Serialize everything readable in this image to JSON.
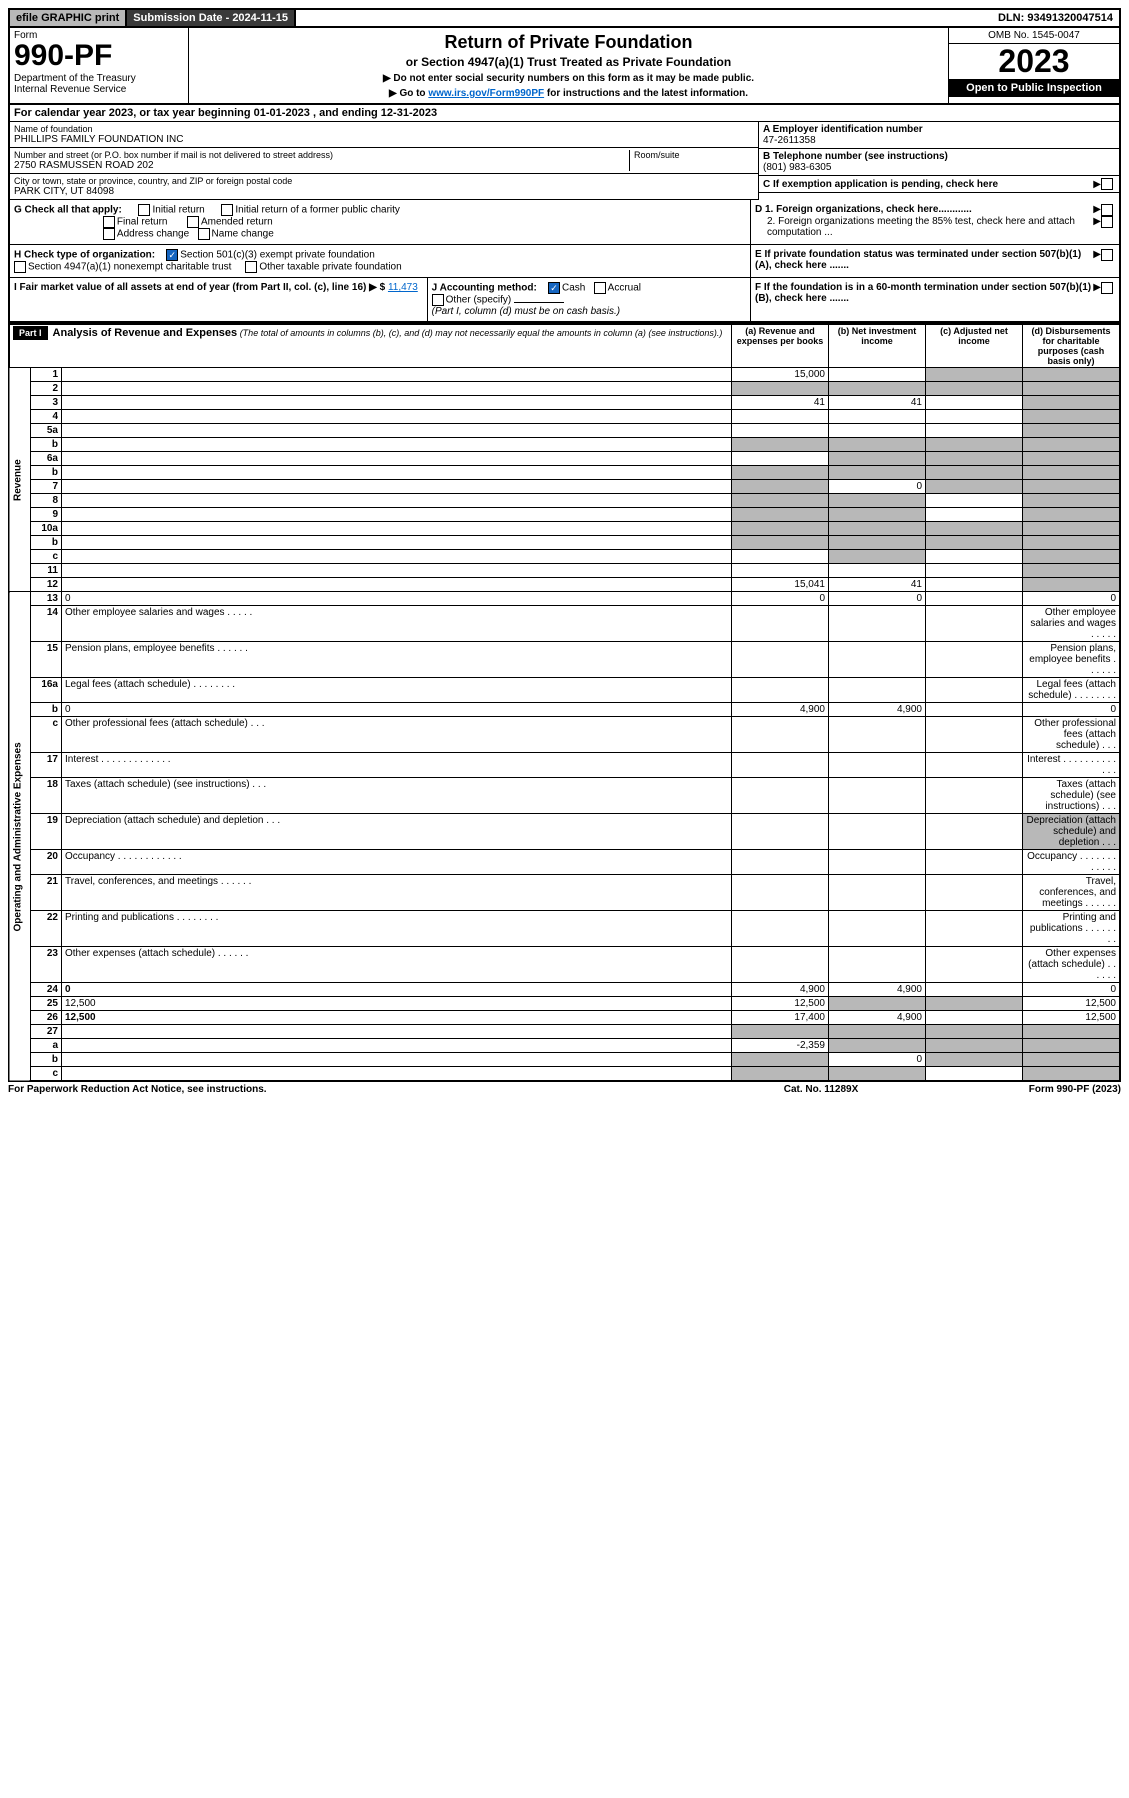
{
  "topbar": {
    "efile": "efile GRAPHIC print",
    "submission": "Submission Date - 2024-11-15",
    "dln": "DLN: 93491320047514"
  },
  "header": {
    "form_label": "Form",
    "form_number": "990-PF",
    "dept": "Department of the Treasury\nInternal Revenue Service",
    "title": "Return of Private Foundation",
    "subtitle": "or Section 4947(a)(1) Trust Treated as Private Foundation",
    "instr1": "▶ Do not enter social security numbers on this form as it may be made public.",
    "instr2_pre": "▶ Go to ",
    "instr2_link": "www.irs.gov/Form990PF",
    "instr2_post": " for instructions and the latest information.",
    "omb": "OMB No. 1545-0047",
    "year": "2023",
    "open": "Open to Public Inspection"
  },
  "cal_year": "For calendar year 2023, or tax year beginning 01-01-2023           , and ending 12-31-2023",
  "info": {
    "name_lbl": "Name of foundation",
    "name": "PHILLIPS FAMILY FOUNDATION INC",
    "addr_lbl": "Number and street (or P.O. box number if mail is not delivered to street address)",
    "addr": "2750 RASMUSSEN ROAD 202",
    "room_lbl": "Room/suite",
    "city_lbl": "City or town, state or province, country, and ZIP or foreign postal code",
    "city": "PARK CITY, UT  84098",
    "ein_lbl": "A Employer identification number",
    "ein": "47-2611358",
    "tel_lbl": "B Telephone number (see instructions)",
    "tel": "(801) 983-6305",
    "c_lbl": "C If exemption application is pending, check here"
  },
  "checks": {
    "g_lbl": "G Check all that apply:",
    "g_opts": [
      "Initial return",
      "Final return",
      "Address change",
      "Initial return of a former public charity",
      "Amended return",
      "Name change"
    ],
    "h_lbl": "H Check type of organization:",
    "h_opt1": "Section 501(c)(3) exempt private foundation",
    "h_opt2": "Section 4947(a)(1) nonexempt charitable trust",
    "h_opt3": "Other taxable private foundation",
    "i_lbl": "I Fair market value of all assets at end of year (from Part II, col. (c), line 16) ▶ $",
    "i_val": "11,473",
    "j_lbl": "J Accounting method:",
    "j_cash": "Cash",
    "j_accr": "Accrual",
    "j_other": "Other (specify)",
    "j_note": "(Part I, column (d) must be on cash basis.)",
    "d1": "D 1. Foreign organizations, check here............",
    "d2": "2. Foreign organizations meeting the 85% test, check here and attach computation ...",
    "e_lbl": "E  If private foundation status was terminated under section 507(b)(1)(A), check here .......",
    "f_lbl": "F  If the foundation is in a 60-month termination under section 507(b)(1)(B), check here .......",
    "arrow": "▶"
  },
  "part1": {
    "label": "Part I",
    "title": "Analysis of Revenue and Expenses",
    "title_note": "(The total of amounts in columns (b), (c), and (d) may not necessarily equal the amounts in column (a) (see instructions).)",
    "col_a": "(a)  Revenue and expenses per books",
    "col_b": "(b)  Net investment income",
    "col_c": "(c)  Adjusted net income",
    "col_d": "(d)  Disbursements for charitable purposes (cash basis only)",
    "side_rev": "Revenue",
    "side_exp": "Operating and Administrative Expenses"
  },
  "rows": [
    {
      "n": "1",
      "d": "",
      "a": "15,000",
      "b": "",
      "c": "",
      "sh": [
        "c",
        "d"
      ]
    },
    {
      "n": "2",
      "d": "",
      "a": "",
      "b": "",
      "c": "",
      "sh": [
        "a",
        "b",
        "c",
        "d"
      ]
    },
    {
      "n": "3",
      "d": "",
      "a": "41",
      "b": "41",
      "c": "",
      "sh": [
        "d"
      ]
    },
    {
      "n": "4",
      "d": "",
      "a": "",
      "b": "",
      "c": "",
      "sh": [
        "d"
      ]
    },
    {
      "n": "5a",
      "d": "",
      "a": "",
      "b": "",
      "c": "",
      "sh": [
        "d"
      ]
    },
    {
      "n": "b",
      "d": "",
      "a": "",
      "b": "",
      "c": "",
      "sh": [
        "a",
        "b",
        "c",
        "d"
      ]
    },
    {
      "n": "6a",
      "d": "",
      "a": "",
      "b": "",
      "c": "",
      "sh": [
        "b",
        "c",
        "d"
      ]
    },
    {
      "n": "b",
      "d": "",
      "a": "",
      "b": "",
      "c": "",
      "sh": [
        "a",
        "b",
        "c",
        "d"
      ]
    },
    {
      "n": "7",
      "d": "",
      "a": "",
      "b": "0",
      "c": "",
      "sh": [
        "a",
        "c",
        "d"
      ]
    },
    {
      "n": "8",
      "d": "",
      "a": "",
      "b": "",
      "c": "",
      "sh": [
        "a",
        "b",
        "d"
      ]
    },
    {
      "n": "9",
      "d": "",
      "a": "",
      "b": "",
      "c": "",
      "sh": [
        "a",
        "b",
        "d"
      ]
    },
    {
      "n": "10a",
      "d": "",
      "a": "",
      "b": "",
      "c": "",
      "sh": [
        "a",
        "b",
        "c",
        "d"
      ]
    },
    {
      "n": "b",
      "d": "",
      "a": "",
      "b": "",
      "c": "",
      "sh": [
        "a",
        "b",
        "c",
        "d"
      ]
    },
    {
      "n": "c",
      "d": "",
      "a": "",
      "b": "",
      "c": "",
      "sh": [
        "b",
        "d"
      ]
    },
    {
      "n": "11",
      "d": "",
      "a": "",
      "b": "",
      "c": "",
      "sh": [
        "d"
      ]
    },
    {
      "n": "12",
      "d": "",
      "a": "15,041",
      "b": "41",
      "c": "",
      "sh": [
        "d"
      ],
      "bold": true
    },
    {
      "n": "13",
      "d": "0",
      "a": "0",
      "b": "0",
      "c": ""
    },
    {
      "n": "14",
      "d": "Other employee salaries and wages   .   .   .   .   .",
      "a": ""
    },
    {
      "n": "15",
      "d": "Pension plans, employee benefits   .   .   .   .   .   .",
      "a": ""
    },
    {
      "n": "16a",
      "d": "Legal fees (attach schedule)   .   .   .   .   .   .   .   .",
      "a": ""
    },
    {
      "n": "b",
      "d": "0",
      "a": "4,900",
      "b": "4,900",
      "c": ""
    },
    {
      "n": "c",
      "d": "Other professional fees (attach schedule)   .   .   .",
      "a": ""
    },
    {
      "n": "17",
      "d": "Interest   .   .   .   .   .   .   .   .   .   .   .   .   .",
      "a": ""
    },
    {
      "n": "18",
      "d": "Taxes (attach schedule) (see instructions)   .   .   .",
      "a": ""
    },
    {
      "n": "19",
      "d": "Depreciation (attach schedule) and depletion   .   .   .",
      "a": "",
      "sh": [
        "d"
      ]
    },
    {
      "n": "20",
      "d": "Occupancy   .   .   .   .   .   .   .   .   .   .   .   .",
      "a": ""
    },
    {
      "n": "21",
      "d": "Travel, conferences, and meetings   .   .   .   .   .   .",
      "a": ""
    },
    {
      "n": "22",
      "d": "Printing and publications   .   .   .   .   .   .   .   .",
      "a": ""
    },
    {
      "n": "23",
      "d": "Other expenses (attach schedule)   .   .   .   .   .   .",
      "a": ""
    },
    {
      "n": "24",
      "d": "0",
      "a": "4,900",
      "b": "4,900",
      "c": "",
      "bold": true
    },
    {
      "n": "25",
      "d": "12,500",
      "a": "12,500",
      "b": "",
      "c": "",
      "sh": [
        "b",
        "c"
      ]
    },
    {
      "n": "26",
      "d": "12,500",
      "a": "17,400",
      "b": "4,900",
      "c": "",
      "bold": true
    },
    {
      "n": "27",
      "d": "",
      "a": "",
      "b": "",
      "c": "",
      "sh": [
        "a",
        "b",
        "c",
        "d"
      ]
    },
    {
      "n": "a",
      "d": "",
      "a": "-2,359",
      "b": "",
      "c": "",
      "bold": true,
      "sh": [
        "b",
        "c",
        "d"
      ]
    },
    {
      "n": "b",
      "d": "",
      "a": "",
      "b": "0",
      "c": "",
      "bold": true,
      "sh": [
        "a",
        "c",
        "d"
      ]
    },
    {
      "n": "c",
      "d": "",
      "a": "",
      "b": "",
      "c": "",
      "bold": true,
      "sh": [
        "a",
        "b",
        "d"
      ]
    }
  ],
  "footer": {
    "left": "For Paperwork Reduction Act Notice, see instructions.",
    "mid": "Cat. No. 11289X",
    "right": "Form 990-PF (2023)"
  }
}
